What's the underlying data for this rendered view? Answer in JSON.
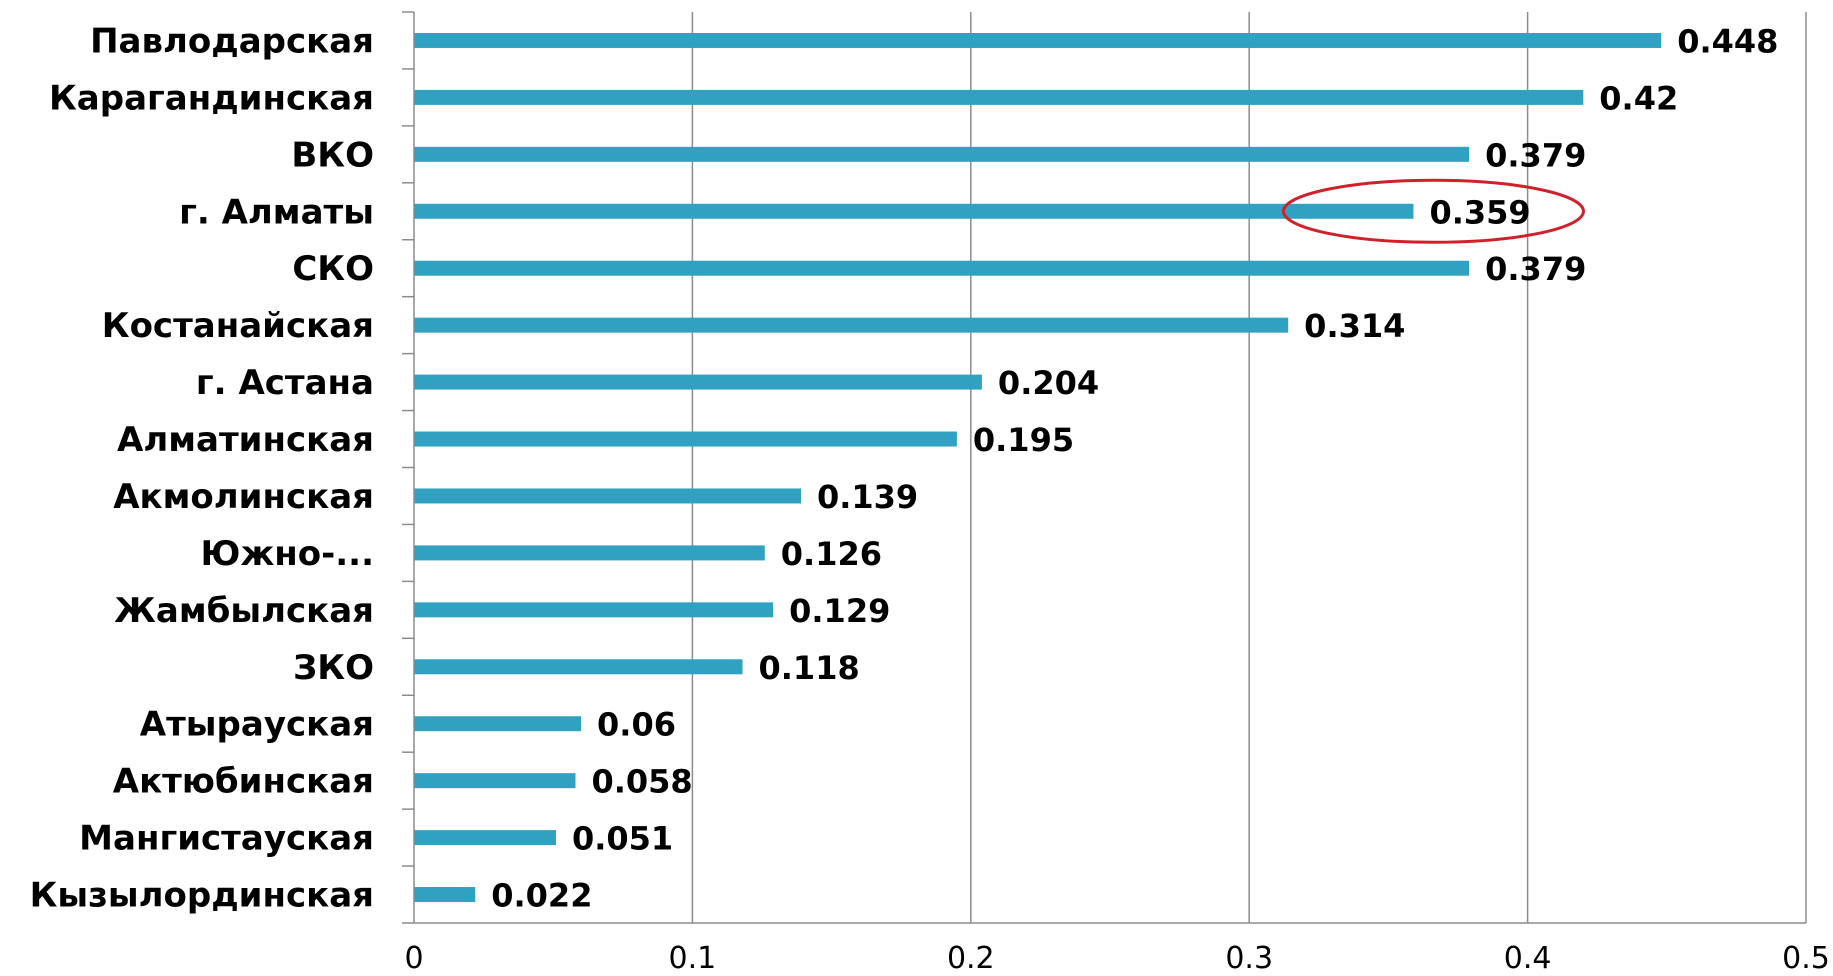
{
  "chart_data": {
    "type": "bar",
    "orientation": "horizontal",
    "categories": [
      "Павлодарская",
      "Карагандинская",
      "ВКО",
      "г. Алматы",
      "СКО",
      "Костанайская",
      "г. Астана",
      "Алматинская",
      "Акмолинская",
      "Южно-...",
      "Жамбылская",
      "ЗКО",
      "Атырауская",
      "Актюбинская",
      "Мангистауская",
      "Кызылординская"
    ],
    "values": [
      0.448,
      0.42,
      0.379,
      0.359,
      0.379,
      0.314,
      0.204,
      0.195,
      0.139,
      0.126,
      0.129,
      0.118,
      0.06,
      0.058,
      0.051,
      0.022
    ],
    "value_labels": [
      "0.448",
      "0.42",
      "0.379",
      "0.359",
      "0.379",
      "0.314",
      "0.204",
      "0.195",
      "0.139",
      "0.126",
      "0.129",
      "0.118",
      "0.06",
      "0.058",
      "0.051",
      "0.022"
    ],
    "xlim": [
      0,
      0.5
    ],
    "xticks": [
      0,
      0.1,
      0.2,
      0.3,
      0.4,
      0.5
    ],
    "xtick_labels": [
      "0",
      "0.1",
      "0.2",
      "0.3",
      "0.4",
      "0.5"
    ],
    "title": "",
    "xlabel": "",
    "ylabel": "",
    "grid": true,
    "legend": "none",
    "bar_color": "#31a1c2",
    "highlight": {
      "category": "г. Алматы",
      "shape": "ellipse",
      "color": "#d0212b"
    }
  }
}
